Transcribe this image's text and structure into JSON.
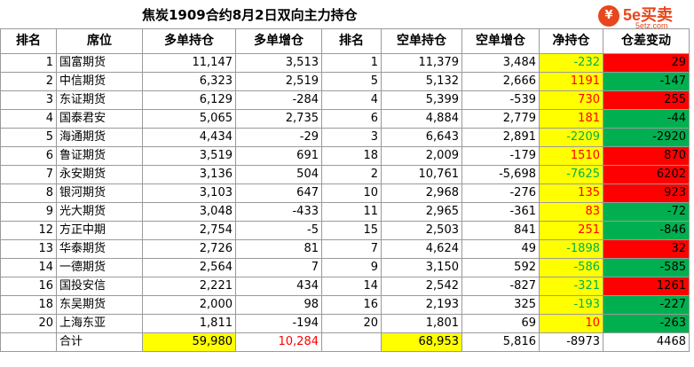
{
  "title": "焦炭1909合约8月2日双向主力持仓",
  "logo": {
    "glyph": "¥",
    "text": "5e买卖",
    "sub": "5etz.com"
  },
  "headers": [
    "排名",
    "席位",
    "多单持仓",
    "多单增仓",
    "排名",
    "空单持仓",
    "空单增仓",
    "净持仓",
    "仓差变动"
  ],
  "rows": [
    [
      "1",
      "国富期货",
      "11,147",
      "3,513",
      "1",
      "11,379",
      "3,484",
      "-232",
      "29"
    ],
    [
      "2",
      "中信期货",
      "6,323",
      "2,519",
      "5",
      "5,132",
      "2,666",
      "1191",
      "-147"
    ],
    [
      "3",
      "东证期货",
      "6,129",
      "-284",
      "4",
      "5,399",
      "-539",
      "730",
      "255"
    ],
    [
      "4",
      "国泰君安",
      "5,065",
      "2,735",
      "6",
      "4,884",
      "2,779",
      "181",
      "-44"
    ],
    [
      "5",
      "海通期货",
      "4,434",
      "-29",
      "3",
      "6,643",
      "2,891",
      "-2209",
      "-2920"
    ],
    [
      "6",
      "鲁证期货",
      "3,519",
      "691",
      "18",
      "2,009",
      "-179",
      "1510",
      "870"
    ],
    [
      "7",
      "永安期货",
      "3,136",
      "504",
      "2",
      "10,761",
      "-5,698",
      "-7625",
      "6202"
    ],
    [
      "8",
      "银河期货",
      "3,103",
      "647",
      "10",
      "2,968",
      "-276",
      "135",
      "923"
    ],
    [
      "9",
      "光大期货",
      "3,048",
      "-433",
      "11",
      "2,965",
      "-361",
      "83",
      "-72"
    ],
    [
      "12",
      "方正中期",
      "2,754",
      "-5",
      "15",
      "2,503",
      "841",
      "251",
      "-846"
    ],
    [
      "13",
      "华泰期货",
      "2,726",
      "81",
      "7",
      "4,624",
      "49",
      "-1898",
      "32"
    ],
    [
      "14",
      "一德期货",
      "2,564",
      "7",
      "9",
      "3,150",
      "592",
      "-586",
      "-585"
    ],
    [
      "16",
      "国投安信",
      "2,221",
      "434",
      "14",
      "2,542",
      "-827",
      "-321",
      "1261"
    ],
    [
      "18",
      "东吴期货",
      "2,000",
      "98",
      "16",
      "2,193",
      "325",
      "-193",
      "-227"
    ],
    [
      "20",
      "上海东亚",
      "1,811",
      "-194",
      "20",
      "1,801",
      "69",
      "10",
      "-263"
    ]
  ],
  "total": {
    "label": "合计",
    "long_total": "59,980",
    "long_change": "10,284",
    "short_total": "68,953",
    "short_change": "5,816",
    "net": "-8973",
    "diff": "4468"
  }
}
